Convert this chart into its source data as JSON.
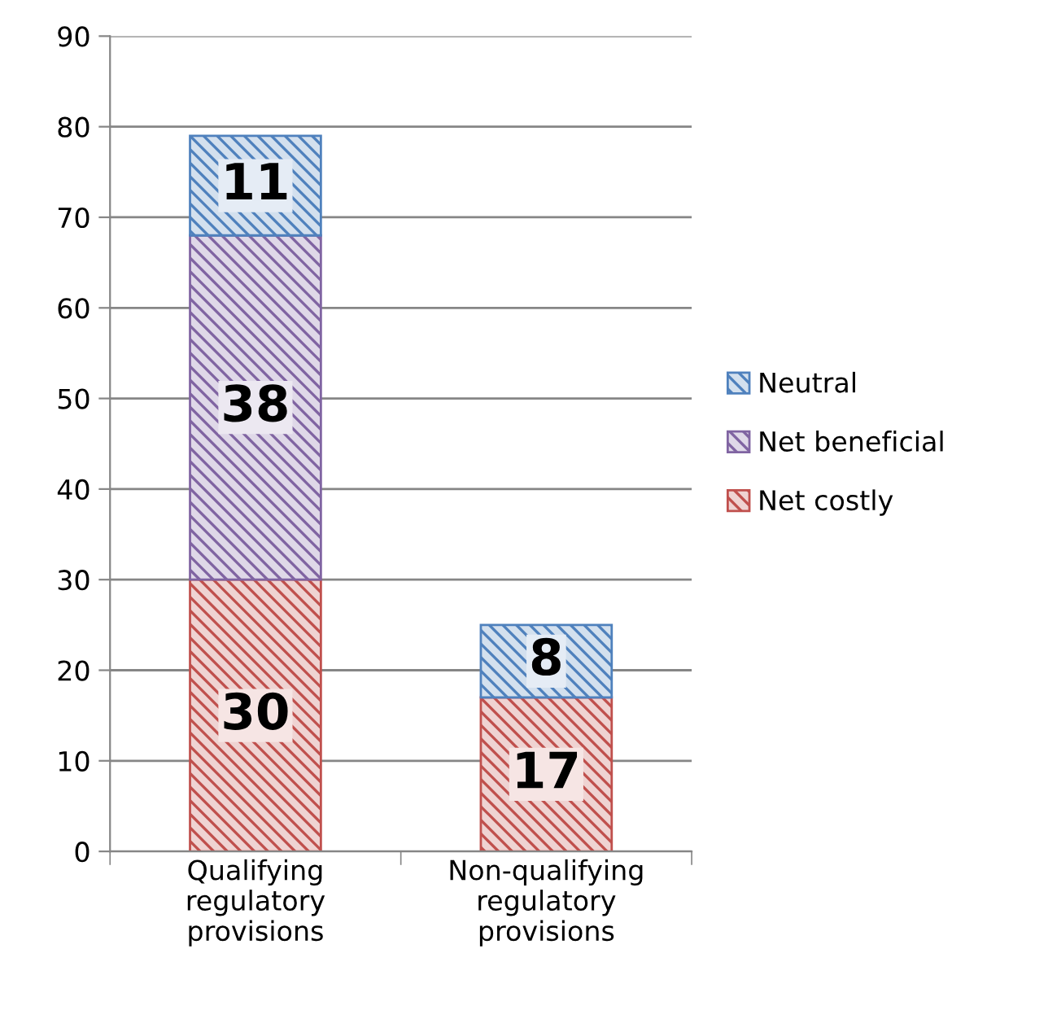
{
  "chart_data": {
    "type": "bar",
    "stacked": true,
    "categories": [
      "Qualifying\nregulatory\nprovisions",
      "Non-qualifying\nregulatory\nprovisions"
    ],
    "series": [
      {
        "name": "Net costly",
        "color": "#c0504d",
        "values": [
          30,
          17
        ],
        "value_labels": [
          "30",
          "17"
        ]
      },
      {
        "name": "Net beneficial",
        "color": "#8064a2",
        "values": [
          38,
          0
        ],
        "value_labels": [
          "38",
          null
        ]
      },
      {
        "name": "Neutral",
        "color": "#4f81bd",
        "values": [
          11,
          8
        ],
        "value_labels": [
          "11",
          "8"
        ]
      }
    ],
    "ylim": [
      0,
      90
    ],
    "yticks": [
      0,
      10,
      20,
      30,
      40,
      50,
      60,
      70,
      80,
      90
    ],
    "grid": "y",
    "legend": "right"
  }
}
